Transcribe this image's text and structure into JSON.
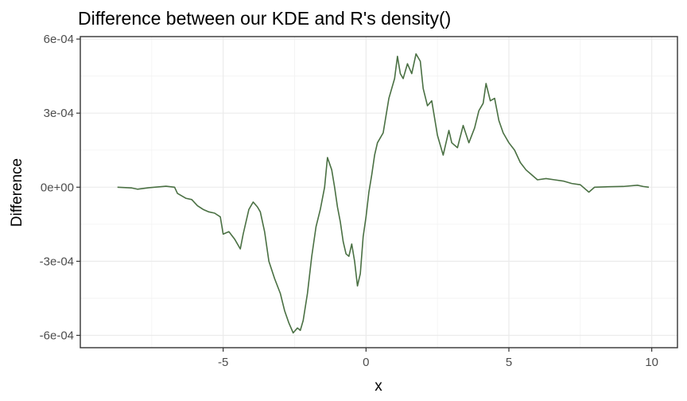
{
  "chart_data": {
    "type": "line",
    "title": "Difference between our KDE and R's density()",
    "xlabel": "x",
    "ylabel": "Difference",
    "xlim": [
      -10,
      10.9
    ],
    "ylim": [
      -0.00065,
      0.00061
    ],
    "x_ticks": [
      -5,
      0,
      5,
      10
    ],
    "x_tick_labels": [
      "-5",
      "0",
      "5",
      "10"
    ],
    "y_ticks": [
      -0.0006,
      -0.0003,
      0,
      0.0003,
      0.0006
    ],
    "y_tick_labels": [
      "-6e-04",
      "-3e-04",
      "0e+00",
      "3e-04",
      "6e-04"
    ],
    "grid": true,
    "series": [
      {
        "color": "#4a7043",
        "x": [
          -8.7,
          -8.2,
          -8.0,
          -7.6,
          -7.0,
          -6.7,
          -6.6,
          -6.3,
          -6.1,
          -5.9,
          -5.7,
          -5.5,
          -5.3,
          -5.1,
          -5.0,
          -4.8,
          -4.6,
          -4.4,
          -4.3,
          -4.1,
          -3.95,
          -3.8,
          -3.7,
          -3.55,
          -3.4,
          -3.2,
          -3.0,
          -2.85,
          -2.7,
          -2.55,
          -2.4,
          -2.3,
          -2.2,
          -2.05,
          -1.9,
          -1.75,
          -1.6,
          -1.45,
          -1.35,
          -1.2,
          -1.1,
          -1.0,
          -0.9,
          -0.8,
          -0.7,
          -0.6,
          -0.5,
          -0.4,
          -0.3,
          -0.2,
          -0.1,
          0.0,
          0.1,
          0.2,
          0.3,
          0.4,
          0.6,
          0.8,
          1.0,
          1.1,
          1.2,
          1.3,
          1.45,
          1.6,
          1.75,
          1.9,
          2.0,
          2.15,
          2.3,
          2.5,
          2.7,
          2.9,
          3.0,
          3.2,
          3.4,
          3.6,
          3.8,
          3.95,
          4.1,
          4.2,
          4.35,
          4.5,
          4.65,
          4.8,
          5.0,
          5.2,
          5.4,
          5.6,
          5.8,
          6.0,
          6.3,
          6.6,
          6.9,
          7.2,
          7.5,
          7.8,
          8.0,
          8.5,
          9.0,
          9.5,
          9.7,
          9.9
        ],
        "y": [
          0.0,
          -3e-06,
          -8e-06,
          -2e-06,
          4e-06,
          0.0,
          -2.5e-05,
          -4.5e-05,
          -5e-05,
          -7.5e-05,
          -9e-05,
          -0.0001,
          -0.000105,
          -0.00012,
          -0.00019,
          -0.00018,
          -0.00021,
          -0.00025,
          -0.00019,
          -9e-05,
          -6e-05,
          -8e-05,
          -0.0001,
          -0.00018,
          -0.0003,
          -0.00037,
          -0.00043,
          -0.0005,
          -0.00055,
          -0.00059,
          -0.00057,
          -0.00058,
          -0.00054,
          -0.00043,
          -0.00028,
          -0.00016,
          -9e-05,
          0.0,
          0.00012,
          7e-05,
          0.0,
          -8e-05,
          -0.00014,
          -0.00022,
          -0.00027,
          -0.00028,
          -0.00023,
          -0.0003,
          -0.0004,
          -0.00035,
          -0.0002,
          -0.00012,
          -2e-05,
          5e-05,
          0.00013,
          0.00018,
          0.00022,
          0.00036,
          0.00044,
          0.00053,
          0.00046,
          0.00044,
          0.0005,
          0.00046,
          0.00054,
          0.00051,
          0.0004,
          0.00033,
          0.00035,
          0.00021,
          0.00013,
          0.00023,
          0.00018,
          0.00016,
          0.00025,
          0.00018,
          0.00024,
          0.00031,
          0.00034,
          0.00042,
          0.00035,
          0.00036,
          0.00027,
          0.00022,
          0.00018,
          0.00015,
          0.0001,
          7e-05,
          5e-05,
          3e-05,
          3.5e-05,
          3e-05,
          2.5e-05,
          1.5e-05,
          1e-05,
          -2e-05,
          0.0,
          2e-06,
          3e-06,
          8e-06,
          3e-06,
          0.0
        ]
      }
    ]
  }
}
